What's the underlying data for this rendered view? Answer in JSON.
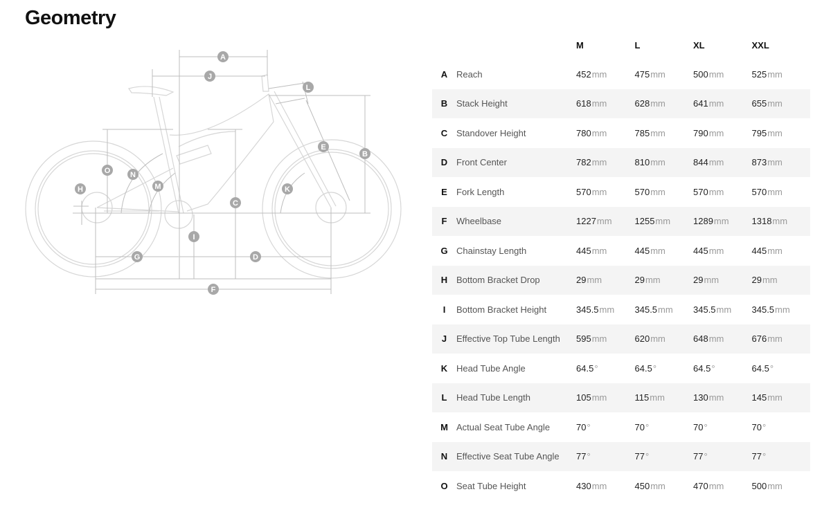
{
  "title": "Geometry",
  "table": {
    "headers": [
      "M",
      "L",
      "XL",
      "XXL"
    ],
    "rows": [
      {
        "letter": "A",
        "label": "Reach",
        "values": [
          "452",
          "475",
          "500",
          "525"
        ],
        "unit": "mm"
      },
      {
        "letter": "B",
        "label": "Stack Height",
        "values": [
          "618",
          "628",
          "641",
          "655"
        ],
        "unit": "mm"
      },
      {
        "letter": "C",
        "label": "Standover Height",
        "values": [
          "780",
          "785",
          "790",
          "795"
        ],
        "unit": "mm"
      },
      {
        "letter": "D",
        "label": "Front Center",
        "values": [
          "782",
          "810",
          "844",
          "873"
        ],
        "unit": "mm"
      },
      {
        "letter": "E",
        "label": "Fork Length",
        "values": [
          "570",
          "570",
          "570",
          "570"
        ],
        "unit": "mm"
      },
      {
        "letter": "F",
        "label": "Wheelbase",
        "values": [
          "1227",
          "1255",
          "1289",
          "1318"
        ],
        "unit": "mm"
      },
      {
        "letter": "G",
        "label": "Chainstay Length",
        "values": [
          "445",
          "445",
          "445",
          "445"
        ],
        "unit": "mm"
      },
      {
        "letter": "H",
        "label": "Bottom Bracket Drop",
        "values": [
          "29",
          "29",
          "29",
          "29"
        ],
        "unit": "mm"
      },
      {
        "letter": "I",
        "label": "Bottom Bracket Height",
        "values": [
          "345.5",
          "345.5",
          "345.5",
          "345.5"
        ],
        "unit": "mm"
      },
      {
        "letter": "J",
        "label": "Effective Top Tube Length",
        "values": [
          "595",
          "620",
          "648",
          "676"
        ],
        "unit": "mm"
      },
      {
        "letter": "K",
        "label": "Head Tube Angle",
        "values": [
          "64.5",
          "64.5",
          "64.5",
          "64.5"
        ],
        "unit": "°"
      },
      {
        "letter": "L",
        "label": "Head Tube Length",
        "values": [
          "105",
          "115",
          "130",
          "145"
        ],
        "unit": "mm"
      },
      {
        "letter": "M",
        "label": "Actual Seat Tube Angle",
        "values": [
          "70",
          "70",
          "70",
          "70"
        ],
        "unit": "°"
      },
      {
        "letter": "N",
        "label": "Effective Seat Tube Angle",
        "values": [
          "77",
          "77",
          "77",
          "77"
        ],
        "unit": "°"
      },
      {
        "letter": "O",
        "label": "Seat Tube Height",
        "values": [
          "430",
          "450",
          "470",
          "500"
        ],
        "unit": "mm"
      }
    ]
  },
  "colors": {
    "row_alt": "#f4f4f4",
    "diagram_line": "#d0d0d0",
    "label_badge": "#a8a8a8"
  }
}
